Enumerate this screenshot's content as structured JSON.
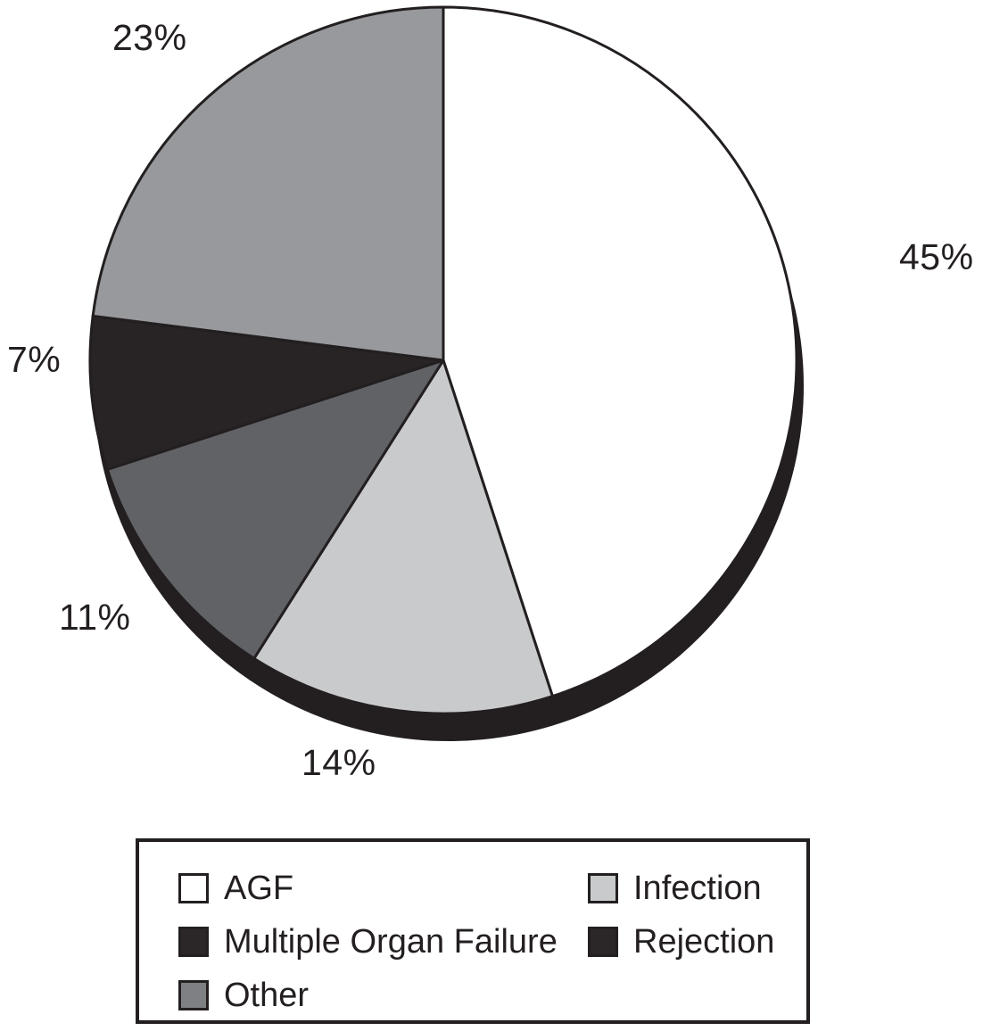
{
  "figure": {
    "background_color": "#ffffff",
    "text_color": "#231f20",
    "outline_color": "#231f20"
  },
  "chart_data": {
    "type": "pie",
    "title": "",
    "start_angle": "top",
    "direction": "clockwise",
    "effect": "3d-drop-shadow-bottom",
    "outline_color": "#231f20",
    "slices": [
      {
        "label": "AGF",
        "value_pct": 45,
        "display_label": "45%",
        "color": "#ffffff"
      },
      {
        "label": "Infection",
        "value_pct": 14,
        "display_label": "14%",
        "color": "#c9cacb"
      },
      {
        "label": "Multiple Organ Failure",
        "value_pct": 11,
        "display_label": "11%",
        "color": "#606266"
      },
      {
        "label": "Rejection",
        "value_pct": 7,
        "display_label": "7%",
        "color": "#282425"
      },
      {
        "label": "Other",
        "value_pct": 23,
        "display_label": "23%",
        "color": "#97999c"
      }
    ],
    "legend": {
      "position": "bottom",
      "columns": 2,
      "entries": [
        {
          "label": "AGF",
          "swatch_color": "#ffffff"
        },
        {
          "label": "Infection",
          "swatch_color": "#c9cacb"
        },
        {
          "label": "Multiple Organ Failure",
          "swatch_color": "#2b2728"
        },
        {
          "label": "Rejection",
          "swatch_color": "#2b2728"
        },
        {
          "label": "Other",
          "swatch_color": "#7e8083"
        }
      ]
    }
  }
}
